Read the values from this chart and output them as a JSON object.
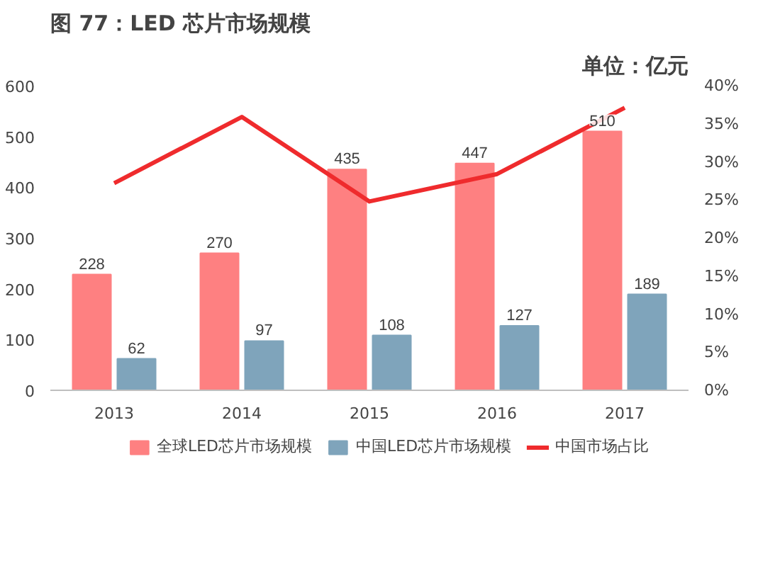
{
  "chart_data": {
    "type": "bar",
    "title": "图 77：LED 芯片市场规模",
    "annotations": [
      "单位：亿元"
    ],
    "categories": [
      "2013",
      "2014",
      "2015",
      "2016",
      "2017"
    ],
    "series": [
      {
        "name": "全球LED芯片市场规模",
        "color": "#fe8081",
        "values": [
          228,
          270,
          435,
          447,
          510
        ],
        "value_labels": [
          "228",
          "270",
          "435",
          "447",
          "510"
        ]
      },
      {
        "name": "中国LED芯片市场规模",
        "color": "#7fa4bb",
        "values": [
          62,
          97,
          108,
          127,
          189
        ],
        "value_labels": [
          "62",
          "97",
          "108",
          "127",
          "189"
        ]
      },
      {
        "name": "中国市场占比",
        "type": "line",
        "axis": "y2",
        "color": "#ef2b2d",
        "values": [
          27.2,
          35.9,
          24.8,
          28.4,
          37.1
        ]
      }
    ],
    "ylim": [
      0,
      600
    ],
    "yticks": [
      0,
      100,
      200,
      300,
      400,
      500,
      600
    ],
    "y2lim": [
      0,
      40
    ],
    "y2ticks": [
      {
        "value": 0,
        "label": "0%"
      },
      {
        "value": 5,
        "label": "5%"
      },
      {
        "value": 10,
        "label": "10%"
      },
      {
        "value": 15,
        "label": "15%"
      },
      {
        "value": 20,
        "label": "20%"
      },
      {
        "value": 25,
        "label": "25%"
      },
      {
        "value": 30,
        "label": "30%"
      },
      {
        "value": 35,
        "label": "35%"
      },
      {
        "value": 40,
        "label": "40%"
      }
    ],
    "legend": "bottom",
    "grid": false
  }
}
